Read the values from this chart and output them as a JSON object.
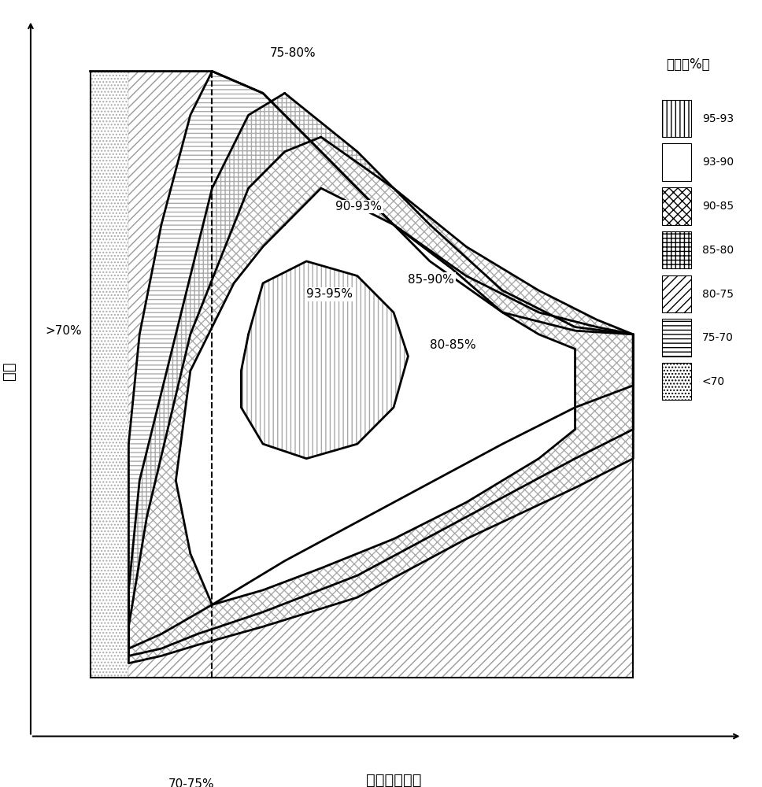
{
  "title": "",
  "xlabel": "电动马达速度",
  "ylabel": "扔矩",
  "legend_title": "效率（%）",
  "legend_labels": [
    "95-93",
    "93-90",
    "90-85",
    "85-80",
    "80-75",
    "75-70",
    "<70"
  ],
  "contour_labels": [
    "75-80%",
    "80-85%",
    "85-90%",
    "90-93%",
    "93-95%"
  ],
  "extra_labels": [
    ">70%",
    "70-75%"
  ],
  "xlim": [
    0,
    10
  ],
  "ylim": [
    0,
    10
  ],
  "dashed_x": 2.5,
  "bg_color": "#ffffff",
  "line_color": "#000000",
  "hatch_colors": {
    "vertical_lines": "#888888",
    "grid_fine": "#aaaaaa",
    "cross_hatch": "#888888",
    "horizontal_lines": "#888888",
    "diagonal_lines": "#999999"
  }
}
